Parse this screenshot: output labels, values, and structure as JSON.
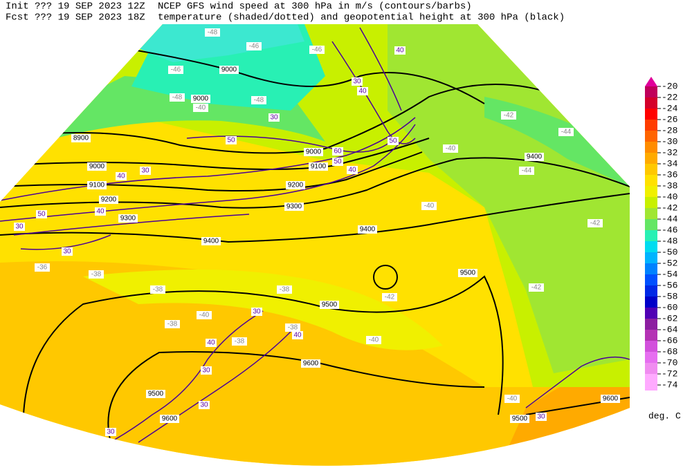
{
  "header": {
    "init": "Init  ??? 19 SEP 2023 12Z",
    "fcst": "Fcst ??? 19 SEP 2023 18Z",
    "title": "NCEP GFS wind speed at 300 hPa in m/s (contours/barbs)",
    "subtitle": "temperature (shaded/dotted) and geopotential height at 300 hPa (black)"
  },
  "colorbar": {
    "ticks": [
      -20,
      -22,
      -24,
      -26,
      -28,
      -30,
      -32,
      -34,
      -36,
      -38,
      -40,
      -42,
      -44,
      -46,
      -48,
      -50,
      -52,
      -54,
      -56,
      -58,
      -60,
      -62,
      -64,
      -66,
      -68,
      -70,
      -72,
      -74
    ],
    "colors": [
      "#e0009a",
      "#c0005a",
      "#d4002a",
      "#ff0000",
      "#ff3c00",
      "#ff6400",
      "#ff8c00",
      "#ffaa00",
      "#ffc800",
      "#ffe100",
      "#f0f000",
      "#c8f000",
      "#a0e632",
      "#64e664",
      "#28f0b4",
      "#00dcf0",
      "#00b4ff",
      "#0082ff",
      "#0050ff",
      "#0028e6",
      "#0000c8",
      "#5000b4",
      "#8c1ea0",
      "#b432b4",
      "#d250dc",
      "#e66ef0",
      "#f08cf0",
      "#ffaaff"
    ],
    "unit": "deg. C"
  },
  "map": {
    "height_labels": [
      "9000",
      "9000",
      "8900",
      "9000",
      "9100",
      "9200",
      "9300",
      "9400",
      "9300",
      "9200",
      "9100",
      "9000",
      "9400",
      "9400",
      "9500",
      "9500",
      "9600",
      "9600",
      "9500",
      "9500",
      "9600"
    ],
    "temperature_labels": [
      "-48",
      "-46",
      "-46",
      "-46",
      "-48",
      "-48",
      "-40",
      "-40",
      "-42",
      "-44",
      "-44",
      "-40",
      "-42",
      "-42",
      "-42",
      "-40",
      "-38",
      "-38",
      "-38",
      "-38",
      "-36",
      "-38",
      "-40",
      "-40",
      "-38"
    ],
    "wind_labels": [
      "30",
      "50",
      "30",
      "40",
      "50",
      "40",
      "30",
      "30",
      "50",
      "60",
      "40",
      "40",
      "40",
      "30",
      "50",
      "30",
      "40",
      "30",
      "30",
      "30",
      "30",
      "40"
    ]
  }
}
